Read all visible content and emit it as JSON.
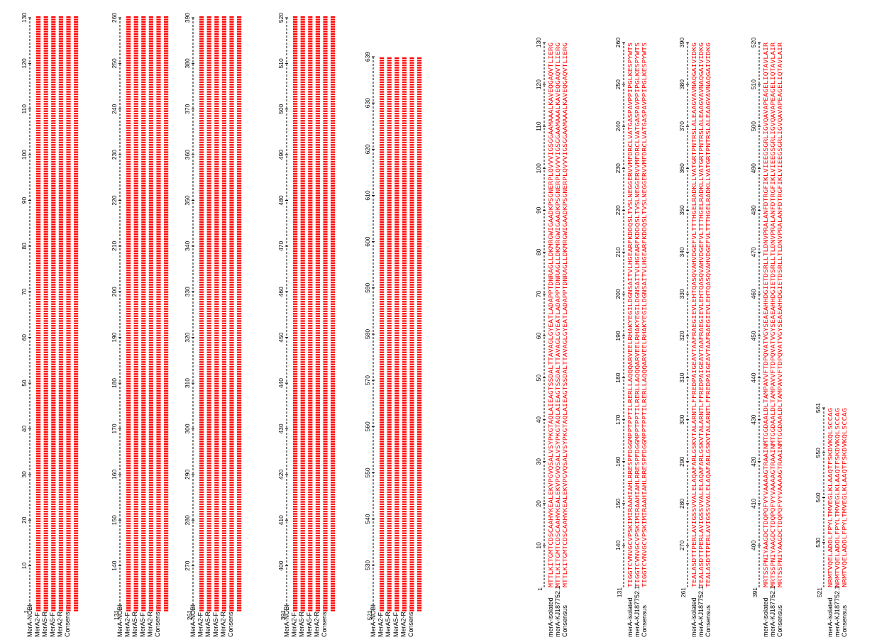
{
  "colors": {
    "sequence": "#ff0000",
    "text": "#000000",
    "ruler": "#000000",
    "background": "#ffffff"
  },
  "dna_alignment": {
    "blocks": [
      {
        "start": "1",
        "ticks": [
          "10",
          "20",
          "30",
          "40",
          "50",
          "60",
          "70",
          "80",
          "90",
          "100",
          "110",
          "120",
          "130"
        ],
        "labels": [
          "MerA-NCBI",
          "MerA2-F",
          "MerA5-R",
          "MerA5-F",
          "MerA2-R",
          "Consensus"
        ]
      },
      {
        "start": "131",
        "ticks": [
          "140",
          "150",
          "160",
          "170",
          "180",
          "190",
          "200",
          "210",
          "220",
          "230",
          "240",
          "250",
          "260"
        ],
        "labels": [
          "MerA-NCBI",
          "MerA2-F",
          "MerA5-R",
          "MerA5-F",
          "MerA2-R",
          "Consensus"
        ]
      },
      {
        "start": "261",
        "ticks": [
          "270",
          "280",
          "290",
          "300",
          "310",
          "320",
          "330",
          "340",
          "350",
          "360",
          "370",
          "380",
          "390"
        ],
        "labels": [
          "MerA-NCBI",
          "MerA2-F",
          "MerA5-R",
          "MerA5-F",
          "MerA2-R",
          "Consensus"
        ]
      },
      {
        "start": "391",
        "ticks": [
          "400",
          "410",
          "420",
          "430",
          "440",
          "450",
          "460",
          "470",
          "480",
          "490",
          "500",
          "510",
          "520"
        ],
        "labels": [
          "MerA-NCBI",
          "MerA2-F",
          "MerA5-R",
          "MerA5-F",
          "MerA2-R",
          "Consensus"
        ]
      },
      {
        "start": "521",
        "ticks": [
          "530",
          "540",
          "550",
          "560",
          "570",
          "580",
          "590",
          "600",
          "610",
          "620",
          "630",
          "639"
        ],
        "labels": [
          "MerA-NCBI",
          "MerA2-F",
          "MerA5-R",
          "MerA5-F",
          "MerA2-R",
          "Consensus"
        ]
      }
    ]
  },
  "protein_alignment": {
    "blocks": [
      {
        "start": "1",
        "ticks": [
          "10",
          "20",
          "30",
          "40",
          "50",
          "60",
          "70",
          "80",
          "90",
          "100",
          "110",
          "120",
          "130"
        ],
        "labels": [
          "merA-isolated",
          "merA-KJ187752.1",
          "Consensus"
        ],
        "rows": [
          "MTTLKITGMTCDSCAAHVKEALEKVPGVQSALVSYPKGTAQLAIEAGTSSDALTTAVAGLGYEATLADAPPTDNRAGLLDKMRGWIGAADKPSGNERPLQVVVIGSGGAAMAAALKAVEQGAQVTLIERG",
          "MTTLKITGMTCDSCAAHVKEALEKVPGVQSALVSYPKGTAQLAIEAGTSSDALTTAVAGLGYEATLADAPPTDNRAGLLDKMRGWIGAADKPSGNERPLQVVVIGSGGAAMAAALKAVEQGAQVTLIERG",
          "MTTLKITGMTCDSCAAHVKEALEKVPGVQSALVSYPKGTAQLAIEAGTSSDALTTAVAGLGYEATLADAPPTDNRAGLLDKMRGWIGAADKPSGNERPLQVVVIGSGGAAMAAALKAVEQGAQVTLIERG"
        ]
      },
      {
        "start": "131",
        "ticks": [
          "140",
          "150",
          "160",
          "170",
          "180",
          "190",
          "200",
          "210",
          "220",
          "230",
          "240",
          "250",
          "260"
        ],
        "labels": [
          "merA-isolated",
          "merA-KJ187752.1",
          "Consensus"
        ],
        "rows": [
          "TIGGTCVNVGCVPSKIMIRAAHIAHLRRESPFDGGMPPTPPTILRERLLAQQQARVEELRHAKYEGILDGNSAITVLHGEARFKDDQSLTVSLNEGGERVVMFDRCLVATGASPAVPPIPGLKESPYWTS",
          "TIGGTCVNVGCVPSKIMIRAAHIAHLRRESPFDGGMPPTPPTILRERLLAQQQARVEELRHAKYEGILDGNSAITVLHGEARFKDDQSLTVSLNEGGERVVMFDRCLVATGASPAVPPIPGLKESPYWTS",
          "TIGGTCVNVGCVPSKIMIRAAHIAHLRRESPFDGGMPPTPPTILRERLLAQQQARVEELRHAKYEGILDGNSAITVLHGEARFKDDQSLTVSLNEGGERVVMFDRCLVATGASPAVPPIPGLKESPYWTS"
        ]
      },
      {
        "start": "261",
        "ticks": [
          "270",
          "280",
          "290",
          "300",
          "310",
          "320",
          "330",
          "340",
          "350",
          "360",
          "370",
          "380",
          "390"
        ],
        "labels": [
          "merA-isolated",
          "merA-KJ187752.1",
          "Consensus"
        ],
        "rows": [
          "TEALASDTTPERLAVIGSSVVALELAQAFARLGSKVTALARNTLFFREDPAIGEAVTAAFRAEGIEVLEHTQASQVAHVDGEFVLTTTHGELRADKLLVATGRTPNTRSLALEAAGVAVNAQGAIVIDKG",
          "TEALASDTTPERLAVIGSSVVALELAQAFARLGSKVTALARNTLFFREDPAIGEAVTAAFRAEGIEVLEHTQASQVAHVDGEFVLTTTHGELRADKLLVATGRTPNTRSLALEAAGVAVNAQGAIVIDKG",
          "TEALASDTTPERLAVIGSSVVALELAQAFARLGSKVTALARNTLFFREDPAIGEAVTAAFRAEGIEVLEHTQASQVAHVDGEFVLTTTHGELRADKLLVATGRTPNTRSLALEAAGVAVNAQGAIVIDKG"
        ]
      },
      {
        "start": "391",
        "ticks": [
          "400",
          "410",
          "420",
          "430",
          "440",
          "450",
          "460",
          "470",
          "480",
          "490",
          "500",
          "510",
          "520"
        ],
        "labels": [
          "merA-isolated",
          "merA-KJ187752.1",
          "Consensus"
        ],
        "rows": [
          "MRTSSPNIYAAGDCTDQPQFVYVAAAAGTRAAINMTGGDAALDLTAMPAVVFTDPQVATVGYSEAEAHHDGIETDSRLLTLDNVPRALANFDTRGFIKLVIEEGSGRLIGVQAVAPEAGELIQTAVLAIR",
          "MRTSSPNIYAAGDCTDQPQFVYVAAAAGTRAAINMTGGDAALDLTAMPAVVFTDPQVATVGYSEAEAHHDGIETDSRLLTLDNVPRALANFDTRGFIKLVIEEGSGRLIGVQAVAPEAGELIQTAVLAIR",
          "MRTSSPNIYAAGDCTDQPQFVYVAAAAGTRAAINMTGGDAALDLTAMPAVVFTDPQVATVGYSEAEAHHDGIETDSRLLTLDNVPRALANFDTRGFIKLVIEEGSGRLIGVQAVAPEAGELIQTAVLAIR"
        ]
      },
      {
        "start": "521",
        "ticks": [
          "530",
          "540",
          "550",
          "561"
        ],
        "labels": [
          "merA-isolated",
          "merA-KJ187752.1",
          "Consensus"
        ],
        "rows": [
          "NRMTVQELADDLFPYLTMVEGLKLAAQTFSKDVKQLSCCAG",
          "NRMTVQELADDLFPYLTMVEGLKLAAQTFSKDVKQLSCCAG",
          "NRMTVQELADDLFPYLTMVEGLKLAAQTFSKDVKQLSCCAG"
        ]
      }
    ]
  }
}
